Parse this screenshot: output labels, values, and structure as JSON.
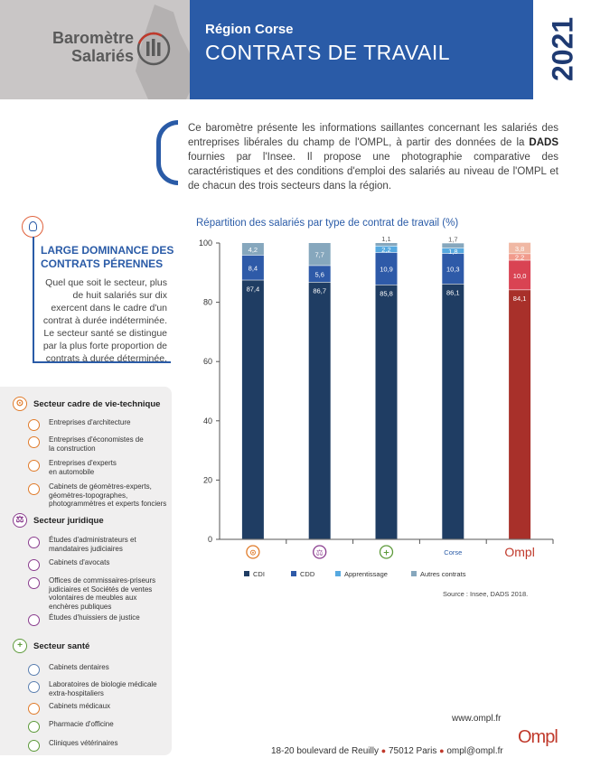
{
  "header": {
    "brand_line1": "Baromètre",
    "brand_line2": "Salariés",
    "region": "Région Corse",
    "title": "CONTRATS DE TRAVAIL",
    "year": "2021"
  },
  "intro": {
    "before": "Ce baromètre présente les informations saillantes concernant les salariés des entreprises libérales du champ de l'OMPL, à partir des données de la ",
    "bold": "DADS",
    "after": " fournies par l'Insee. Il propose une photographie comparative des caractéristiques et des conditions d'emploi des salariés au niveau de l'OMPL et de chacun des trois secteurs dans la région."
  },
  "highlight": {
    "title": "LARGE DOMINANCE DES CONTRATS PÉRENNES",
    "text1": "Quel que soit le secteur, plus de huit salariés sur dix exercent dans le cadre d'un contrat à durée indéterminée.",
    "text2": "Le secteur santé se distingue par la plus forte proportion de contrats à durée déterminée."
  },
  "sectors": [
    {
      "name": "Secteur cadre de vie-technique",
      "icon": "compass-icon",
      "color": "#e07b2a",
      "items": [
        {
          "label": "Entreprises d'architecture",
          "icon": "architecture-icon"
        },
        {
          "label": "Entreprises d'économistes de la construction",
          "icon": "construction-icon"
        },
        {
          "label": "Entreprises d'experts en automobile",
          "icon": "car-icon"
        },
        {
          "label": "Cabinets de géomètres-experts, géomètres-topographes, photogrammètres et experts fonciers",
          "icon": "surveyor-icon"
        }
      ]
    },
    {
      "name": "Secteur juridique",
      "icon": "scales-icon",
      "color": "#8a3d8e",
      "items": [
        {
          "label": "Études d'administrateurs et mandataires judiciaires",
          "icon": "administrator-icon"
        },
        {
          "label": "Cabinets d'avocats",
          "icon": "lawyer-icon"
        },
        {
          "label": "Offices de commissaires-priseurs judiciaires et Sociétés de ventes volontaires de meubles aux enchères publiques",
          "icon": "auction-icon"
        },
        {
          "label": "Études d'huissiers de justice",
          "icon": "bailiff-icon"
        }
      ]
    },
    {
      "name": "Secteur santé",
      "icon": "health-cross-icon",
      "color": "#5d9a3a",
      "items": [
        {
          "label": "Cabinets dentaires",
          "icon": "tooth-icon"
        },
        {
          "label": "Laboratoires de biologie médicale extra-hospitaliers",
          "icon": "lab-icon"
        },
        {
          "label": "Cabinets médicaux",
          "icon": "stethoscope-icon"
        },
        {
          "label": "Pharmacie d'officine",
          "icon": "pharmacy-icon"
        },
        {
          "label": "Cliniques vétérinaires",
          "icon": "paw-icon"
        }
      ]
    }
  ],
  "chart_data": {
    "type": "bar",
    "stacked": true,
    "title": "Répartition des salariés par type de contrat de travail (%)",
    "categories": [
      "cadre-vie-technique",
      "juridique",
      "santé",
      "Corse",
      "OMPL"
    ],
    "category_labels": [
      "",
      "",
      "",
      "Corse",
      "Ompl"
    ],
    "category_icons": [
      "compass-icon",
      "scales-icon",
      "health-cross-icon",
      "",
      "ompl-logo"
    ],
    "series": [
      {
        "name": "CDI",
        "values": [
          87.4,
          86.7,
          85.8,
          86.1,
          84.1
        ],
        "labels": [
          "87,4",
          "86,7",
          "85,8",
          "86,1",
          "84,1"
        ]
      },
      {
        "name": "CDD",
        "values": [
          8.4,
          5.6,
          10.9,
          10.3,
          10.0
        ],
        "labels": [
          "8,4",
          "5,6",
          "10,9",
          "10,3",
          "10,0"
        ]
      },
      {
        "name": "Apprentissage",
        "values": [
          0,
          0,
          2.2,
          1.8,
          2.2
        ],
        "labels": [
          "",
          "",
          "2,2",
          "1,8",
          "2,2"
        ]
      },
      {
        "name": "Autres contrats",
        "values": [
          4.2,
          7.7,
          1.1,
          1.7,
          3.8
        ],
        "labels": [
          "4,2",
          "7,7",
          "1,1",
          "1,7",
          "3,8"
        ]
      }
    ],
    "colors": {
      "CDI": "#1f3d63",
      "CDD": "#2e5aa8",
      "Apprentissage": "#56a9e0",
      "Autres contrats": "#86a7bd",
      "ompl_CDI": "#a8302a",
      "ompl_CDD": "#d94353",
      "ompl_Apprentissage": "#f19b8c",
      "ompl_Autres contrats": "#f0b8a4"
    },
    "y_ticks": [
      "0",
      "20",
      "40",
      "60",
      "80",
      "100"
    ],
    "ylim": [
      0,
      100
    ],
    "legend_position": "bottom",
    "source": "Source : Insee, DADS 2018."
  },
  "footer": {
    "web": "www.ompl.fr",
    "address": "18-20 boulevard de Reuilly",
    "city": "75012 Paris",
    "email": "ompl@ompl.fr",
    "logo": "Ompl"
  }
}
